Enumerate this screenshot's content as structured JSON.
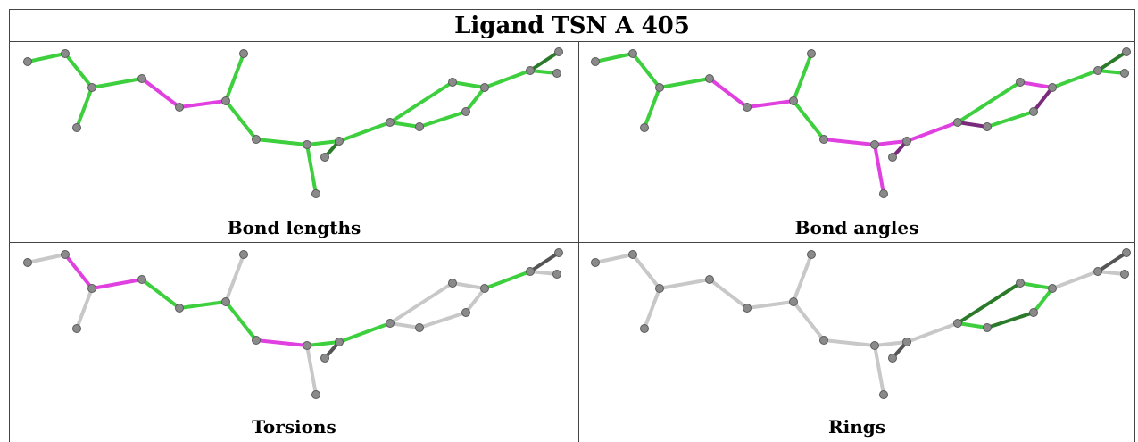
{
  "title": "Ligand TSN A 405",
  "panels": [
    {
      "caption": "Bond lengths"
    },
    {
      "caption": "Bond angles"
    },
    {
      "caption": "Torsions"
    },
    {
      "caption": "Rings"
    }
  ],
  "colors": {
    "green": "#3ecf3e",
    "dark_green": "#2a7a2a",
    "magenta": "#e040e0",
    "dark_magenta": "#7a2a7a",
    "grey": "#c8c8c8",
    "dark_grey": "#555555",
    "atom": "#8a8a8a"
  }
}
